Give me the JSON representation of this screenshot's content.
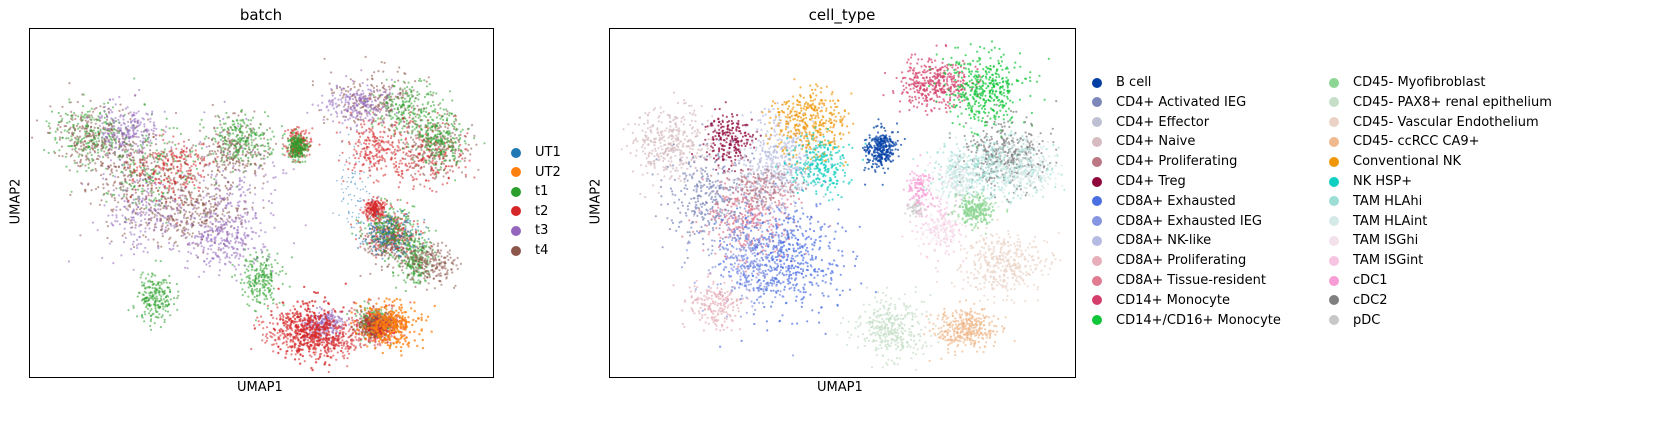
{
  "chart_data": [
    {
      "type": "scatter",
      "title": "batch",
      "xlabel": "UMAP1",
      "ylabel": "UMAP2",
      "grid": false,
      "legend_placement": "right",
      "series": [
        {
          "name": "UT1",
          "color": "#1f77b4"
        },
        {
          "name": "UT2",
          "color": "#ff7f0e"
        },
        {
          "name": "t1",
          "color": "#2ca02c"
        },
        {
          "name": "t2",
          "color": "#d62728"
        },
        {
          "name": "t3",
          "color": "#9467bd"
        },
        {
          "name": "t4",
          "color": "#8c564b"
        }
      ]
    },
    {
      "type": "scatter",
      "title": "cell_type",
      "xlabel": "UMAP1",
      "ylabel": "UMAP2",
      "grid": false,
      "legend_placement": "right",
      "legend_columns": 2,
      "series": [
        {
          "name": "B cell",
          "color": "#023fa5"
        },
        {
          "name": "CD4+ Activated IEG",
          "color": "#7d87b9"
        },
        {
          "name": "CD4+ Effector",
          "color": "#bec1d4"
        },
        {
          "name": "CD4+ Naive",
          "color": "#d6bcc0"
        },
        {
          "name": "CD4+ Proliferating",
          "color": "#bb7784"
        },
        {
          "name": "CD4+ Treg",
          "color": "#8e063b"
        },
        {
          "name": "CD8A+ Exhausted",
          "color": "#4a6fe3"
        },
        {
          "name": "CD8A+ Exhausted IEG",
          "color": "#8595e1"
        },
        {
          "name": "CD8A+ NK-like",
          "color": "#b5bbe3"
        },
        {
          "name": "CD8A+ Proliferating",
          "color": "#e6afb9"
        },
        {
          "name": "CD8A+ Tissue-resident",
          "color": "#e07b91"
        },
        {
          "name": "CD14+ Monocyte",
          "color": "#d33f6a"
        },
        {
          "name": "CD14+/CD16+ Monocyte",
          "color": "#11c638"
        },
        {
          "name": "CD45- Myofibroblast",
          "color": "#8dd593"
        },
        {
          "name": "CD45- PAX8+ renal epithelium",
          "color": "#c6dec7"
        },
        {
          "name": "CD45- Vascular Endothelium",
          "color": "#ead3c6"
        },
        {
          "name": "CD45- ccRCC CA9+",
          "color": "#f0b98d"
        },
        {
          "name": "Conventional NK",
          "color": "#ef9708"
        },
        {
          "name": "NK HSP+",
          "color": "#0fcfc0"
        },
        {
          "name": "TAM HLAhi",
          "color": "#9cded6"
        },
        {
          "name": "TAM HLAint",
          "color": "#d5eae7"
        },
        {
          "name": "TAM ISGhi",
          "color": "#f3e1eb"
        },
        {
          "name": "TAM ISGint",
          "color": "#f6c4e1"
        },
        {
          "name": "cDC1",
          "color": "#f79cd4"
        },
        {
          "name": "cDC2",
          "color": "#7f7f7f"
        },
        {
          "name": "pDC",
          "color": "#c7c7c7"
        }
      ]
    }
  ]
}
